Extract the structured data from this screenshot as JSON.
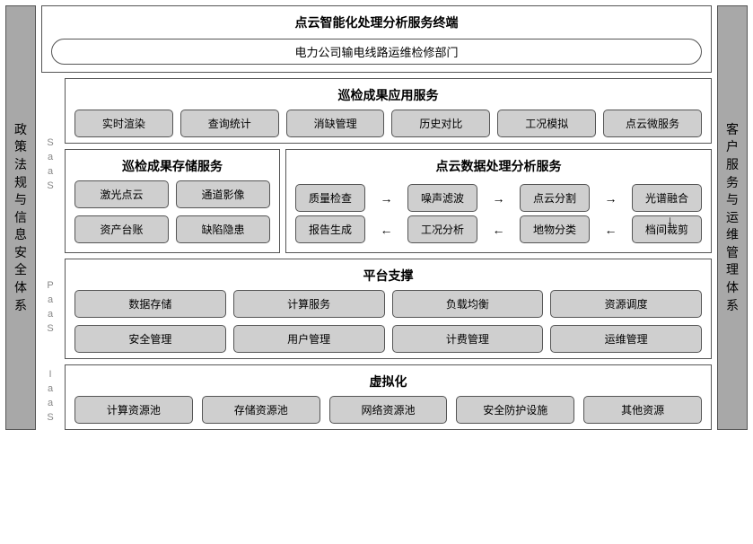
{
  "colors": {
    "pillar_bg": "#a8a8a8",
    "pill_bg": "#cfcfcf",
    "border": "#555555",
    "bg": "#ffffff",
    "layer_label": "#888888"
  },
  "left_pillar": "政策法规与信息安全体系",
  "right_pillar": "客户服务与运维管理体系",
  "top": {
    "title": "点云智能化处理分析服务终端",
    "subtitle": "电力公司输电线路运维检修部门"
  },
  "layers": {
    "saas_label": "SaaS",
    "paas_label": "PaaS",
    "iaas_label": "IaaS"
  },
  "saas": {
    "app_service": {
      "title": "巡检成果应用服务",
      "items": [
        "实时渲染",
        "查询统计",
        "消缺管理",
        "历史对比",
        "工况模拟",
        "点云微服务"
      ]
    },
    "storage": {
      "title": "巡检成果存储服务",
      "items": [
        "激光点云",
        "通道影像",
        "资产台账",
        "缺陷隐患"
      ]
    },
    "processing": {
      "title": "点云数据处理分析服务",
      "row1": [
        "质量检查",
        "噪声滤波",
        "点云分割",
        "光谱融合"
      ],
      "row2": [
        "报告生成",
        "工况分析",
        "地物分类",
        "档间裁剪"
      ]
    }
  },
  "paas": {
    "title": "平台支撑",
    "items": [
      "数据存储",
      "计算服务",
      "负载均衡",
      "资源调度",
      "安全管理",
      "用户管理",
      "计费管理",
      "运维管理"
    ]
  },
  "iaas": {
    "title": "虚拟化",
    "items": [
      "计算资源池",
      "存储资源池",
      "网络资源池",
      "安全防护设施",
      "其他资源"
    ]
  }
}
